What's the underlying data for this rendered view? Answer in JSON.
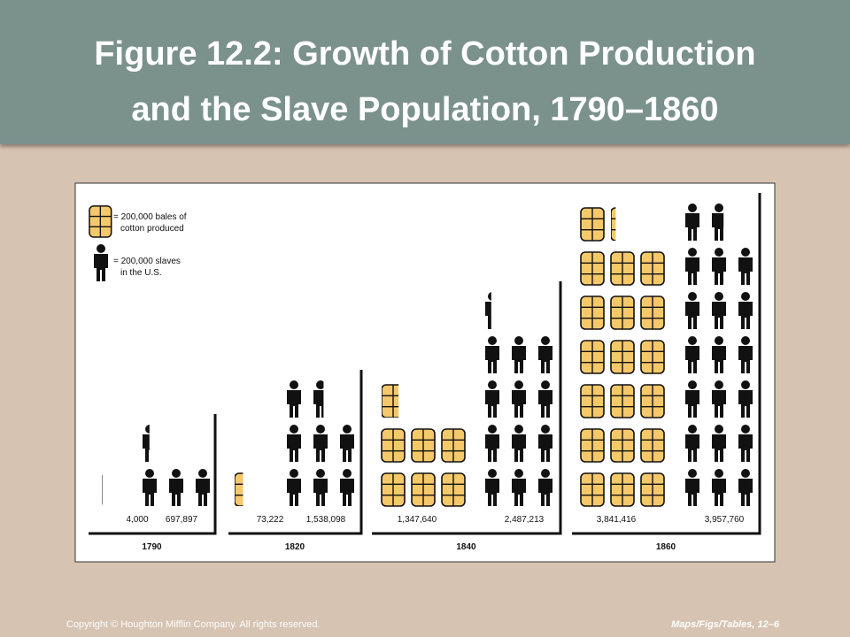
{
  "title": [
    "Figure 12.2: Growth of Cotton Production",
    "and the Slave Population, 1790–1860"
  ],
  "chart_data": {
    "type": "pictograph",
    "categories": [
      "1790",
      "1820",
      "1840",
      "1860"
    ],
    "series": [
      {
        "name": [
          "= 200,000 bales of",
          "cotton produced"
        ],
        "icon": "bale",
        "unit": 200000,
        "color": "#f5c86a",
        "values": [
          4000,
          73222,
          1347640,
          3841416
        ],
        "value_labels": [
          "4,000",
          "73,222",
          "1,347,640",
          "3,841,416"
        ]
      },
      {
        "name": [
          "= 200,000 slaves",
          "in the U.S."
        ],
        "icon": "person",
        "unit": 200000,
        "color": "#111111",
        "values": [
          697897,
          1538098,
          2487213,
          3957760
        ],
        "value_labels": [
          "697,897",
          "1,538,098",
          "2,487,213",
          "3,957,760"
        ]
      }
    ]
  },
  "footer": {
    "left": "Copyright © Houghton Mifflin Company. All rights reserved.",
    "right": "Maps/Figs/Tables, 12–6"
  }
}
